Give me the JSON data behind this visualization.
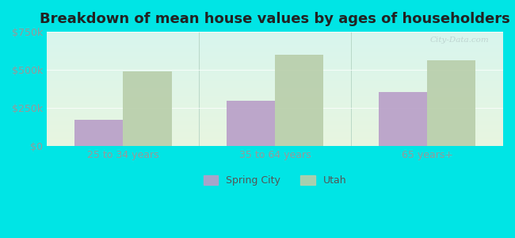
{
  "title": "Breakdown of mean house values by ages of householders",
  "categories": [
    "25 to 34 years",
    "35 to 64 years",
    "65 years+"
  ],
  "spring_city_values": [
    175000,
    300000,
    355000
  ],
  "utah_values": [
    490000,
    600000,
    565000
  ],
  "spring_city_color": "#b89ec8",
  "utah_color": "#b8ceaa",
  "ylim": [
    0,
    750000
  ],
  "yticks": [
    0,
    250000,
    500000,
    750000
  ],
  "ytick_labels": [
    "$0",
    "$250k",
    "$500k",
    "$750k"
  ],
  "outer_bg_color": "#00e5e5",
  "plot_bg_color": "#e0f0e8",
  "legend_labels": [
    "Spring City",
    "Utah"
  ],
  "bar_width": 0.32,
  "title_fontsize": 13,
  "tick_fontsize": 9
}
